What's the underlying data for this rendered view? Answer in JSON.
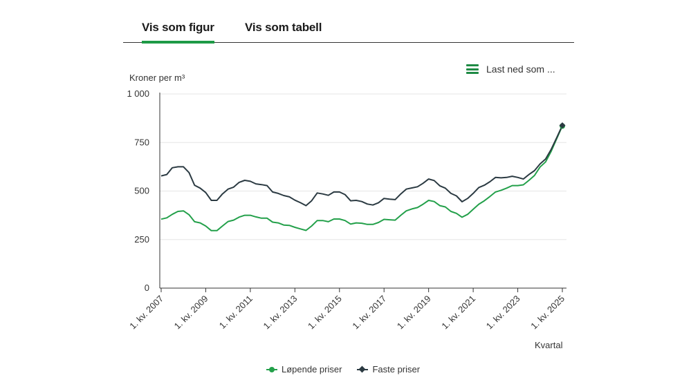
{
  "tabs": [
    {
      "label": "Vis som figur",
      "active": true
    },
    {
      "label": "Vis som tabell",
      "active": false
    }
  ],
  "download": {
    "label": "Last ned som ...",
    "icon": "hamburger-menu-icon"
  },
  "colors": {
    "loepende": "#23a04a",
    "faste": "#2b3a42",
    "accent": "#1e9a46"
  },
  "chart_data": {
    "type": "line",
    "ylabel": "Kroner per m³",
    "xlabel": "Kvartal",
    "ylim": [
      0,
      1000
    ],
    "yticks": [
      0,
      250,
      500,
      750,
      1000
    ],
    "ytick_labels": [
      "0",
      "250",
      "500",
      "750",
      "1 000"
    ],
    "grid": true,
    "legend_position": "bottom-center",
    "start_year": 2007,
    "x_tick_labels": [
      "1. kv. 2007",
      "1. kv. 2009",
      "1. kv. 2011",
      "1. kv. 2013",
      "1. kv. 2015",
      "1. kv. 2017",
      "1. kv. 2019",
      "1. kv. 2021",
      "1. kv. 2023",
      "1. kv. 2025"
    ],
    "series": [
      {
        "name": "Løpende priser",
        "marker": "circle",
        "values": [
          355,
          362,
          380,
          395,
          398,
          378,
          342,
          336,
          320,
          296,
          296,
          320,
          343,
          350,
          366,
          375,
          375,
          367,
          360,
          360,
          340,
          336,
          325,
          323,
          313,
          305,
          297,
          320,
          348,
          348,
          342,
          356,
          356,
          348,
          330,
          336,
          334,
          328,
          328,
          338,
          354,
          352,
          350,
          375,
          398,
          408,
          415,
          432,
          452,
          446,
          425,
          418,
          395,
          385,
          365,
          380,
          406,
          432,
          450,
          472,
          495,
          504,
          515,
          528,
          528,
          532,
          555,
          580,
          624,
          650,
          705,
          770,
          835
        ]
      },
      {
        "name": "Faste priser",
        "marker": "diamond",
        "values": [
          578,
          585,
          620,
          625,
          625,
          595,
          530,
          515,
          492,
          452,
          452,
          485,
          510,
          520,
          545,
          555,
          550,
          537,
          533,
          528,
          495,
          488,
          477,
          470,
          453,
          440,
          425,
          450,
          490,
          485,
          478,
          495,
          495,
          482,
          450,
          452,
          446,
          433,
          428,
          440,
          462,
          458,
          456,
          485,
          510,
          516,
          522,
          540,
          562,
          554,
          527,
          515,
          488,
          475,
          445,
          462,
          488,
          518,
          530,
          548,
          570,
          568,
          570,
          576,
          570,
          562,
          585,
          605,
          640,
          665,
          715,
          775,
          838
        ]
      }
    ]
  }
}
